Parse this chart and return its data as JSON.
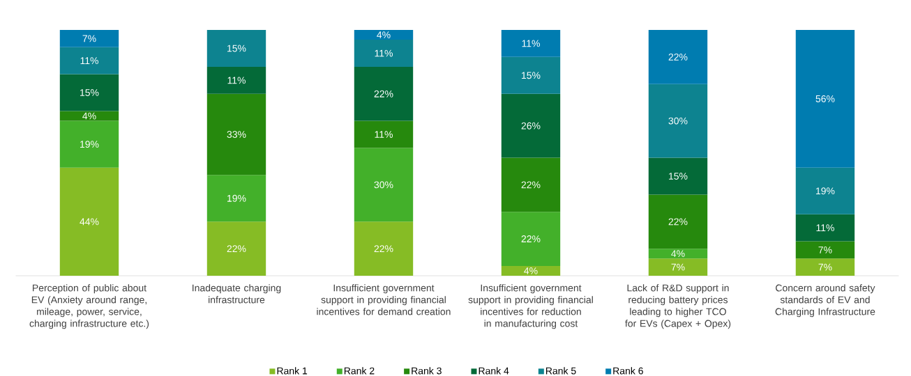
{
  "chart_data": {
    "type": "bar",
    "stacked": true,
    "data_labels": true,
    "legend": "bottom",
    "ylim": [
      0,
      100
    ],
    "categories": [
      "Perception of public about EV (Anxiety around range, mileage, power, service, charging infrastructure etc.)",
      "Inadequate charging infrastructure",
      "Insufficient government support in providing financial incentives for demand creation",
      "Insufficient government support in providing financial incentives for reduction in manufacturing cost",
      "Lack of R&D support in reducing battery prices leading to higher TCO for EVs (Capex + Opex)",
      "Concern around safety standards of EV and Charging Infrastructure"
    ],
    "series": [
      {
        "name": "Rank 1",
        "color": "#86bc25",
        "values": [
          44,
          22,
          22,
          4,
          7,
          7
        ],
        "value_labels": [
          "44%",
          "22%",
          "22%",
          "4%",
          "7%",
          "7%"
        ]
      },
      {
        "name": "Rank 2",
        "color": "#43b02a",
        "values": [
          19,
          19,
          30,
          22,
          4,
          null
        ],
        "value_labels": [
          "19%",
          "19%",
          "30%",
          "22%",
          "4%",
          null
        ]
      },
      {
        "name": "Rank 3",
        "color": "#26890d",
        "values": [
          4,
          33,
          11,
          22,
          22,
          7
        ],
        "value_labels": [
          "4%",
          "33%",
          "11%",
          "22%",
          "22%",
          "7%"
        ]
      },
      {
        "name": "Rank 4",
        "color": "#046a38",
        "values": [
          15,
          11,
          22,
          26,
          15,
          11
        ],
        "value_labels": [
          "15%",
          "11%",
          "22%",
          "26%",
          "15%",
          "11%"
        ]
      },
      {
        "name": "Rank 5",
        "color": "#0d8390",
        "values": [
          11,
          15,
          11,
          15,
          30,
          19
        ],
        "value_labels": [
          "11%",
          "15%",
          "11%",
          "15%",
          "30%",
          "19%"
        ]
      },
      {
        "name": "Rank 6",
        "color": "#007cb0",
        "values": [
          7,
          null,
          4,
          11,
          22,
          56
        ],
        "value_labels": [
          "7%",
          null,
          "4%",
          "11%",
          "22%",
          "56%"
        ]
      }
    ]
  }
}
